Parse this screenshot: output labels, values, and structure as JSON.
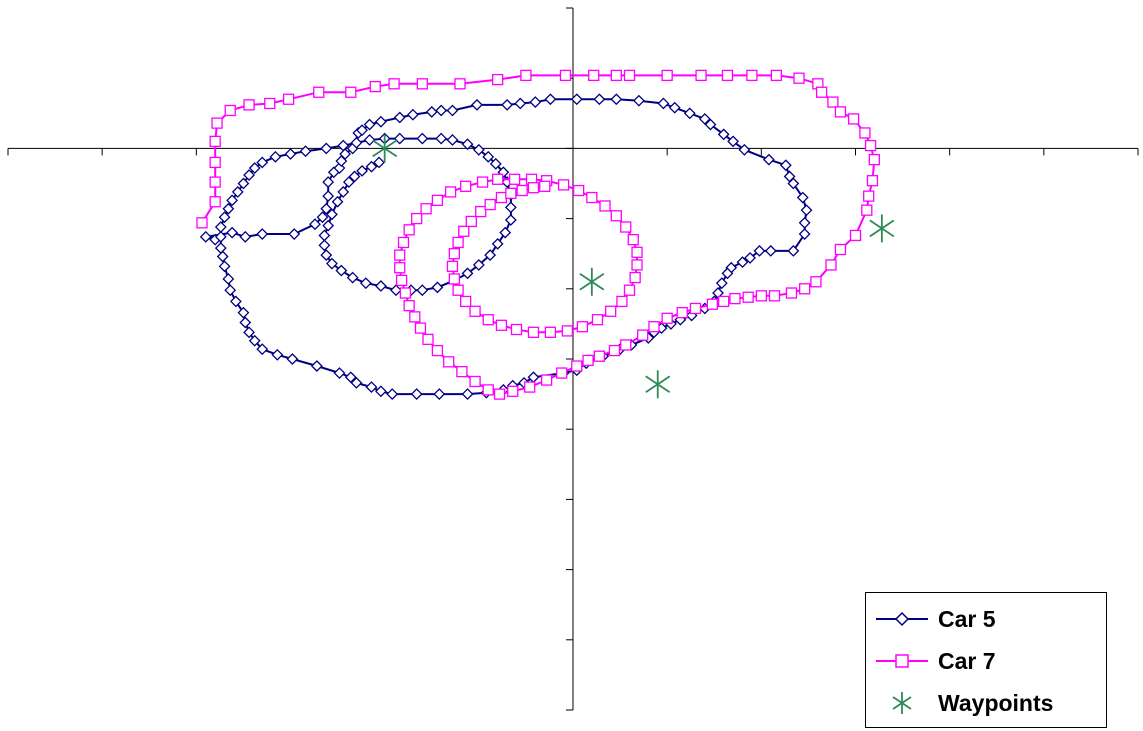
{
  "chart_data": {
    "type": "line",
    "title": "",
    "xlabel": "",
    "ylabel": "",
    "xlim": [
      -3,
      3
    ],
    "ylim": [
      -4,
      1
    ],
    "x_tick_step": 0.5,
    "y_tick_step": 0.5,
    "grid": false,
    "legend_position": "bottom-right",
    "series": [
      {
        "name": "Car 5",
        "color": "#000080",
        "marker": "diamond",
        "points": [
          [
            -1.9,
            -0.65
          ],
          [
            -1.95,
            -0.63
          ],
          [
            -1.81,
            -0.6
          ],
          [
            -1.74,
            -0.63
          ],
          [
            -1.65,
            -0.61
          ],
          [
            -1.48,
            -0.61
          ],
          [
            -1.37,
            -0.54
          ],
          [
            -1.33,
            -0.49
          ],
          [
            -1.31,
            -0.43
          ],
          [
            -1.3,
            -0.34
          ],
          [
            -1.3,
            -0.24
          ],
          [
            -1.27,
            -0.17
          ],
          [
            -1.24,
            -0.14
          ],
          [
            -1.23,
            -0.09
          ],
          [
            -1.21,
            -0.04
          ],
          [
            -1.17,
            -0.0
          ],
          [
            -1.14,
            0.11
          ],
          [
            -1.12,
            0.13
          ],
          [
            -1.08,
            0.17
          ],
          [
            -1.02,
            0.19
          ],
          [
            -0.92,
            0.22
          ],
          [
            -0.85,
            0.24
          ],
          [
            -0.75,
            0.26
          ],
          [
            -0.7,
            0.27
          ],
          [
            -0.64,
            0.27
          ],
          [
            -0.51,
            0.31
          ],
          [
            -0.35,
            0.31
          ],
          [
            -0.28,
            0.32
          ],
          [
            -0.2,
            0.33
          ],
          [
            -0.12,
            0.35
          ],
          [
            0.02,
            0.35
          ],
          [
            0.14,
            0.35
          ],
          [
            0.23,
            0.35
          ],
          [
            0.35,
            0.34
          ],
          [
            0.48,
            0.32
          ],
          [
            0.54,
            0.29
          ],
          [
            0.62,
            0.25
          ],
          [
            0.7,
            0.21
          ],
          [
            0.73,
            0.17
          ],
          [
            0.8,
            0.1
          ],
          [
            0.85,
            0.05
          ],
          [
            0.91,
            -0.01
          ],
          [
            1.04,
            -0.08
          ],
          [
            1.13,
            -0.12
          ],
          [
            1.15,
            -0.2
          ],
          [
            1.17,
            -0.25
          ],
          [
            1.22,
            -0.35
          ],
          [
            1.24,
            -0.44
          ],
          [
            1.23,
            -0.53
          ],
          [
            1.23,
            -0.61
          ],
          [
            1.17,
            -0.73
          ],
          [
            1.05,
            -0.73
          ],
          [
            0.99,
            -0.73
          ],
          [
            0.94,
            -0.78
          ],
          [
            0.9,
            -0.81
          ],
          [
            0.84,
            -0.85
          ],
          [
            0.82,
            -0.89
          ],
          [
            0.79,
            -0.96
          ],
          [
            0.77,
            -1.03
          ],
          [
            0.75,
            -1.09
          ],
          [
            0.7,
            -1.14
          ],
          [
            0.63,
            -1.19
          ],
          [
            0.57,
            -1.22
          ],
          [
            0.52,
            -1.25
          ],
          [
            0.47,
            -1.28
          ],
          [
            0.43,
            -1.31
          ],
          [
            0.4,
            -1.35
          ],
          [
            0.31,
            -1.4
          ],
          [
            0.25,
            -1.43
          ],
          [
            0.16,
            -1.48
          ],
          [
            0.07,
            -1.53
          ],
          [
            0.02,
            -1.58
          ],
          [
            -0.05,
            -1.6
          ],
          [
            -0.21,
            -1.63
          ],
          [
            -0.26,
            -1.67
          ],
          [
            -0.32,
            -1.69
          ],
          [
            -0.37,
            -1.72
          ],
          [
            -0.46,
            -1.74
          ],
          [
            -0.56,
            -1.75
          ],
          [
            -0.71,
            -1.75
          ],
          [
            -0.83,
            -1.75
          ],
          [
            -0.96,
            -1.75
          ],
          [
            -1.02,
            -1.73
          ],
          [
            -1.07,
            -1.7
          ],
          [
            -1.15,
            -1.67
          ],
          [
            -1.18,
            -1.63
          ],
          [
            -1.24,
            -1.6
          ],
          [
            -1.36,
            -1.55
          ],
          [
            -1.49,
            -1.5
          ],
          [
            -1.57,
            -1.47
          ],
          [
            -1.65,
            -1.43
          ],
          [
            -1.69,
            -1.37
          ],
          [
            -1.72,
            -1.31
          ],
          [
            -1.74,
            -1.24
          ],
          [
            -1.75,
            -1.17
          ],
          [
            -1.79,
            -1.09
          ],
          [
            -1.82,
            -1.01
          ],
          [
            -1.83,
            -0.93
          ],
          [
            -1.85,
            -0.84
          ],
          [
            -1.86,
            -0.77
          ],
          [
            -1.87,
            -0.71
          ],
          [
            -1.87,
            -0.63
          ],
          [
            -1.87,
            -0.56
          ],
          [
            -1.85,
            -0.49
          ],
          [
            -1.83,
            -0.43
          ],
          [
            -1.81,
            -0.37
          ],
          [
            -1.78,
            -0.31
          ],
          [
            -1.75,
            -0.25
          ],
          [
            -1.72,
            -0.19
          ],
          [
            -1.69,
            -0.14
          ],
          [
            -1.65,
            -0.1
          ],
          [
            -1.58,
            -0.06
          ],
          [
            -1.5,
            -0.04
          ],
          [
            -1.42,
            -0.02
          ],
          [
            -1.31,
            -0.0
          ],
          [
            -1.22,
            0.02
          ],
          [
            -1.15,
            0.04
          ],
          [
            -1.08,
            0.06
          ],
          [
            -1.0,
            0.07
          ],
          [
            -0.92,
            0.07
          ],
          [
            -0.8,
            0.07
          ],
          [
            -0.7,
            0.07
          ],
          [
            -0.64,
            0.06
          ],
          [
            -0.56,
            0.03
          ],
          [
            -0.5,
            -0.01
          ],
          [
            -0.45,
            -0.06
          ],
          [
            -0.41,
            -0.11
          ],
          [
            -0.37,
            -0.17
          ],
          [
            -0.35,
            -0.24
          ],
          [
            -0.33,
            -0.33
          ],
          [
            -0.33,
            -0.42
          ],
          [
            -0.33,
            -0.51
          ],
          [
            -0.36,
            -0.6
          ],
          [
            -0.4,
            -0.68
          ],
          [
            -0.44,
            -0.76
          ],
          [
            -0.5,
            -0.83
          ],
          [
            -0.56,
            -0.89
          ],
          [
            -0.63,
            -0.94
          ],
          [
            -0.72,
            -0.99
          ],
          [
            -0.8,
            -1.01
          ],
          [
            -0.86,
            -1.01
          ],
          [
            -0.94,
            -1.01
          ],
          [
            -1.02,
            -0.98
          ],
          [
            -1.1,
            -0.96
          ],
          [
            -1.17,
            -0.92
          ],
          [
            -1.23,
            -0.87
          ],
          [
            -1.28,
            -0.82
          ],
          [
            -1.31,
            -0.76
          ],
          [
            -1.32,
            -0.69
          ],
          [
            -1.32,
            -0.62
          ],
          [
            -1.3,
            -0.55
          ],
          [
            -1.28,
            -0.47
          ],
          [
            -1.25,
            -0.38
          ],
          [
            -1.22,
            -0.31
          ],
          [
            -1.19,
            -0.24
          ],
          [
            -1.16,
            -0.2
          ],
          [
            -1.12,
            -0.16
          ],
          [
            -1.07,
            -0.13
          ],
          [
            -1.03,
            -0.1
          ]
        ]
      },
      {
        "name": "Car 7",
        "color": "#ff00ff",
        "marker": "square",
        "points": [
          [
            -1.97,
            -0.53
          ],
          [
            -1.9,
            -0.38
          ],
          [
            -1.9,
            -0.24
          ],
          [
            -1.9,
            -0.1
          ],
          [
            -1.9,
            0.05
          ],
          [
            -1.89,
            0.18
          ],
          [
            -1.82,
            0.27
          ],
          [
            -1.72,
            0.31
          ],
          [
            -1.61,
            0.32
          ],
          [
            -1.51,
            0.35
          ],
          [
            -1.35,
            0.4
          ],
          [
            -1.18,
            0.4
          ],
          [
            -1.05,
            0.44
          ],
          [
            -0.95,
            0.46
          ],
          [
            -0.8,
            0.46
          ],
          [
            -0.6,
            0.46
          ],
          [
            -0.4,
            0.49
          ],
          [
            -0.25,
            0.52
          ],
          [
            -0.04,
            0.52
          ],
          [
            0.11,
            0.52
          ],
          [
            0.23,
            0.52
          ],
          [
            0.3,
            0.52
          ],
          [
            0.5,
            0.52
          ],
          [
            0.68,
            0.52
          ],
          [
            0.82,
            0.52
          ],
          [
            0.95,
            0.52
          ],
          [
            1.08,
            0.52
          ],
          [
            1.2,
            0.5
          ],
          [
            1.3,
            0.46
          ],
          [
            1.32,
            0.4
          ],
          [
            1.38,
            0.33
          ],
          [
            1.42,
            0.26
          ],
          [
            1.49,
            0.21
          ],
          [
            1.55,
            0.11
          ],
          [
            1.58,
            0.02
          ],
          [
            1.6,
            -0.08
          ],
          [
            1.59,
            -0.23
          ],
          [
            1.57,
            -0.34
          ],
          [
            1.56,
            -0.44
          ],
          [
            1.5,
            -0.62
          ],
          [
            1.42,
            -0.72
          ],
          [
            1.37,
            -0.83
          ],
          [
            1.29,
            -0.95
          ],
          [
            1.23,
            -1.0
          ],
          [
            1.16,
            -1.03
          ],
          [
            1.07,
            -1.05
          ],
          [
            1.0,
            -1.05
          ],
          [
            0.93,
            -1.06
          ],
          [
            0.86,
            -1.07
          ],
          [
            0.8,
            -1.09
          ],
          [
            0.74,
            -1.11
          ],
          [
            0.65,
            -1.14
          ],
          [
            0.58,
            -1.17
          ],
          [
            0.5,
            -1.21
          ],
          [
            0.43,
            -1.27
          ],
          [
            0.37,
            -1.33
          ],
          [
            0.28,
            -1.4
          ],
          [
            0.22,
            -1.44
          ],
          [
            0.14,
            -1.48
          ],
          [
            0.08,
            -1.51
          ],
          [
            0.02,
            -1.55
          ],
          [
            -0.06,
            -1.6
          ],
          [
            -0.14,
            -1.65
          ],
          [
            -0.23,
            -1.7
          ],
          [
            -0.32,
            -1.73
          ],
          [
            -0.39,
            -1.75
          ],
          [
            -0.45,
            -1.72
          ],
          [
            -0.52,
            -1.66
          ],
          [
            -0.59,
            -1.59
          ],
          [
            -0.66,
            -1.52
          ],
          [
            -0.72,
            -1.44
          ],
          [
            -0.77,
            -1.36
          ],
          [
            -0.81,
            -1.28
          ],
          [
            -0.84,
            -1.2
          ],
          [
            -0.87,
            -1.12
          ],
          [
            -0.89,
            -1.03
          ],
          [
            -0.91,
            -0.94
          ],
          [
            -0.92,
            -0.85
          ],
          [
            -0.92,
            -0.76
          ],
          [
            -0.9,
            -0.67
          ],
          [
            -0.87,
            -0.58
          ],
          [
            -0.83,
            -0.5
          ],
          [
            -0.78,
            -0.43
          ],
          [
            -0.72,
            -0.37
          ],
          [
            -0.65,
            -0.31
          ],
          [
            -0.57,
            -0.27
          ],
          [
            -0.48,
            -0.24
          ],
          [
            -0.4,
            -0.22
          ],
          [
            -0.31,
            -0.22
          ],
          [
            -0.22,
            -0.22
          ],
          [
            -0.14,
            -0.23
          ],
          [
            -0.05,
            -0.26
          ],
          [
            0.03,
            -0.3
          ],
          [
            0.1,
            -0.35
          ],
          [
            0.17,
            -0.41
          ],
          [
            0.23,
            -0.48
          ],
          [
            0.28,
            -0.56
          ],
          [
            0.32,
            -0.65
          ],
          [
            0.34,
            -0.74
          ],
          [
            0.34,
            -0.83
          ],
          [
            0.33,
            -0.92
          ],
          [
            0.3,
            -1.01
          ],
          [
            0.26,
            -1.09
          ],
          [
            0.2,
            -1.16
          ],
          [
            0.13,
            -1.22
          ],
          [
            0.05,
            -1.27
          ],
          [
            -0.03,
            -1.3
          ],
          [
            -0.12,
            -1.31
          ],
          [
            -0.21,
            -1.31
          ],
          [
            -0.3,
            -1.29
          ],
          [
            -0.38,
            -1.26
          ],
          [
            -0.45,
            -1.22
          ],
          [
            -0.52,
            -1.16
          ],
          [
            -0.57,
            -1.09
          ],
          [
            -0.61,
            -1.01
          ],
          [
            -0.63,
            -0.93
          ],
          [
            -0.64,
            -0.84
          ],
          [
            -0.63,
            -0.75
          ],
          [
            -0.61,
            -0.67
          ],
          [
            -0.58,
            -0.59
          ],
          [
            -0.54,
            -0.52
          ],
          [
            -0.49,
            -0.45
          ],
          [
            -0.44,
            -0.4
          ],
          [
            -0.38,
            -0.35
          ],
          [
            -0.33,
            -0.32
          ],
          [
            -0.27,
            -0.3
          ],
          [
            -0.21,
            -0.28
          ],
          [
            -0.15,
            -0.27
          ]
        ]
      },
      {
        "name": "Waypoints",
        "color": "#2e8b57",
        "marker": "asterisk",
        "points": [
          [
            -1.0,
            0.0
          ],
          [
            0.1,
            -0.95
          ],
          [
            0.45,
            -1.68
          ],
          [
            1.64,
            -0.57
          ]
        ]
      }
    ]
  }
}
